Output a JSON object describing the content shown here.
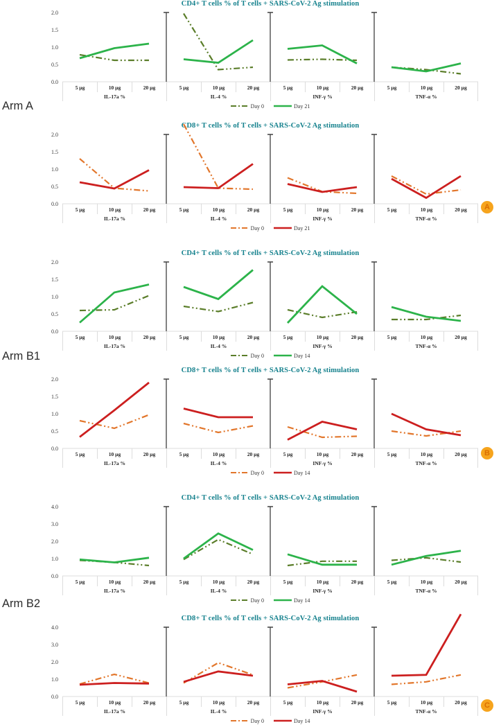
{
  "figure": {
    "arm_labels": [
      {
        "label": "Arm A"
      },
      {
        "label": "Arm B1"
      },
      {
        "label": "Arm B2"
      }
    ],
    "panel_badges": [
      {
        "label": "A"
      },
      {
        "label": "B"
      },
      {
        "label": "C"
      }
    ],
    "colors": {
      "title_teal": "#15818D",
      "day0_olive": "#5A7D29",
      "day_green": "#2CB34A",
      "day0_orange": "#E2762B",
      "day_red": "#CC1F1F",
      "axis_gray": "#DCDCDC",
      "divider_black": "#3F3F3F",
      "badge_bg": "#F6A41D",
      "badge_text": "#DB6E00"
    }
  },
  "chart_data": [
    {
      "type": "line",
      "title": "CD4+ T cells % of T cells + SARS-CoV-2 Ag stimulation",
      "ylim": [
        0,
        2.0
      ],
      "yticks": [
        "2.0",
        "1.5",
        "1.0",
        "0.5",
        "0.0"
      ],
      "x_categories": [
        "5 µg",
        "10 µg",
        "20 µg"
      ],
      "legend": [
        {
          "name": "Day 0",
          "style": "dash-dot",
          "color": "#5A7D29"
        },
        {
          "name": "Day 21",
          "style": "solid",
          "color": "#2CB34A"
        }
      ],
      "panels": [
        {
          "label": "IL-17a %",
          "series": [
            {
              "name": "Day 0",
              "values": [
                0.78,
                0.62,
                0.62
              ]
            },
            {
              "name": "Day 21",
              "values": [
                0.68,
                0.97,
                1.1
              ]
            }
          ]
        },
        {
          "label": "IL-4 %",
          "series": [
            {
              "name": "Day 0",
              "values": [
                1.97,
                0.35,
                0.42
              ]
            },
            {
              "name": "Day 21",
              "values": [
                0.65,
                0.55,
                1.2
              ]
            }
          ]
        },
        {
          "label": "INF-γ %",
          "series": [
            {
              "name": "Day 0",
              "values": [
                0.63,
                0.65,
                0.62
              ]
            },
            {
              "name": "Day 21",
              "values": [
                0.95,
                1.05,
                0.53
              ]
            }
          ]
        },
        {
          "label": "TNF-α %",
          "series": [
            {
              "name": "Day 0",
              "values": [
                0.42,
                0.35,
                0.23
              ]
            },
            {
              "name": "Day 21",
              "values": [
                0.42,
                0.3,
                0.53
              ]
            }
          ]
        }
      ]
    },
    {
      "type": "line",
      "title": "CD8+ T cells % of T cells + SARS-CoV-2 Ag stimulation",
      "ylim": [
        0,
        2.0
      ],
      "yticks": [
        "2.0",
        "1.5",
        "1.0",
        "0.5",
        "0.0"
      ],
      "x_categories": [
        "5 µg",
        "10 µg",
        "20 µg"
      ],
      "legend": [
        {
          "name": "Day 0",
          "style": "dash-dot",
          "color": "#E2762B"
        },
        {
          "name": "Day 21",
          "style": "solid",
          "color": "#CC1F1F"
        }
      ],
      "panels": [
        {
          "label": "IL-17a %",
          "series": [
            {
              "name": "Day 0",
              "values": [
                1.3,
                0.45,
                0.37
              ]
            },
            {
              "name": "Day 21",
              "values": [
                0.62,
                0.44,
                0.97
              ]
            }
          ]
        },
        {
          "label": "IL-4 %",
          "series": [
            {
              "name": "Day 0",
              "values": [
                2.3,
                0.45,
                0.42
              ]
            },
            {
              "name": "Day 21",
              "values": [
                0.48,
                0.45,
                1.15
              ]
            }
          ]
        },
        {
          "label": "INF-γ %",
          "series": [
            {
              "name": "Day 0",
              "values": [
                0.75,
                0.35,
                0.3
              ]
            },
            {
              "name": "Day 21",
              "values": [
                0.57,
                0.34,
                0.48
              ]
            }
          ]
        },
        {
          "label": "TNF-α %",
          "series": [
            {
              "name": "Day 0",
              "values": [
                0.8,
                0.28,
                0.4
              ]
            },
            {
              "name": "Day 21",
              "values": [
                0.72,
                0.17,
                0.8
              ]
            }
          ]
        }
      ]
    },
    {
      "type": "line",
      "title": "CD4+ T cells % of T cells + SARS-CoV-2 Ag stimulation",
      "ylim": [
        0,
        2.0
      ],
      "yticks": [
        "2.0",
        "1.5",
        "1.0",
        "0.5",
        "0.0"
      ],
      "x_categories": [
        "5 µg",
        "10 µg",
        "20 µg"
      ],
      "legend": [
        {
          "name": "Day 0",
          "style": "dash-dot",
          "color": "#5A7D29"
        },
        {
          "name": "Day 14",
          "style": "solid",
          "color": "#2CB34A"
        }
      ],
      "panels": [
        {
          "label": "IL-17a %",
          "series": [
            {
              "name": "Day 0",
              "values": [
                0.6,
                0.62,
                1.03
              ]
            },
            {
              "name": "Day 14",
              "values": [
                0.25,
                1.12,
                1.35
              ]
            }
          ]
        },
        {
          "label": "IL-4 %",
          "series": [
            {
              "name": "Day 0",
              "values": [
                0.72,
                0.57,
                0.83
              ]
            },
            {
              "name": "Day 14",
              "values": [
                1.28,
                0.93,
                1.77
              ]
            }
          ]
        },
        {
          "label": "INF-γ %",
          "series": [
            {
              "name": "Day 0",
              "values": [
                0.62,
                0.4,
                0.56
              ]
            },
            {
              "name": "Day 14",
              "values": [
                0.24,
                1.3,
                0.5
              ]
            }
          ]
        },
        {
          "label": "TNF-α %",
          "series": [
            {
              "name": "Day 0",
              "values": [
                0.34,
                0.34,
                0.46
              ]
            },
            {
              "name": "Day 14",
              "values": [
                0.7,
                0.42,
                0.3
              ]
            }
          ]
        }
      ]
    },
    {
      "type": "line",
      "title": "CD8+ T cells % of T cells + SARS-CoV-2 Ag stimulation",
      "ylim": [
        0,
        2.0
      ],
      "yticks": [
        "2.0",
        "1.5",
        "1.0",
        "0.5",
        "0.0"
      ],
      "x_categories": [
        "5 µg",
        "10 µg",
        "20 µg"
      ],
      "legend": [
        {
          "name": "Day 0",
          "style": "dash-dot",
          "color": "#E2762B"
        },
        {
          "name": "Day 14",
          "style": "solid",
          "color": "#CC1F1F"
        }
      ],
      "panels": [
        {
          "label": "IL-17a %",
          "series": [
            {
              "name": "Day 0",
              "values": [
                0.8,
                0.58,
                0.97
              ]
            },
            {
              "name": "Day 14",
              "values": [
                0.33,
                1.1,
                1.9
              ]
            }
          ]
        },
        {
          "label": "IL-4 %",
          "series": [
            {
              "name": "Day 0",
              "values": [
                0.72,
                0.46,
                0.65
              ]
            },
            {
              "name": "Day 14",
              "values": [
                1.15,
                0.9,
                0.9
              ]
            }
          ]
        },
        {
          "label": "INF-γ %",
          "series": [
            {
              "name": "Day 0",
              "values": [
                0.62,
                0.32,
                0.35
              ]
            },
            {
              "name": "Day 14",
              "values": [
                0.25,
                0.77,
                0.55
              ]
            }
          ]
        },
        {
          "label": "TNF-α %",
          "series": [
            {
              "name": "Day 0",
              "values": [
                0.5,
                0.36,
                0.5
              ]
            },
            {
              "name": "Day 14",
              "values": [
                1.0,
                0.55,
                0.38
              ]
            }
          ]
        }
      ]
    },
    {
      "type": "line",
      "title": "CD4+ T cells % of T cells + SARS-CoV-2 Ag stimulation",
      "ylim": [
        0,
        4.0
      ],
      "yticks": [
        "4.0",
        "3.0",
        "2.0",
        "1.0",
        "0.0"
      ],
      "x_categories": [
        "5 µg",
        "10 µg",
        "20 µg"
      ],
      "legend": [
        {
          "name": "Day 0",
          "style": "dash-dot",
          "color": "#5A7D29"
        },
        {
          "name": "Day 14",
          "style": "solid",
          "color": "#2CB34A"
        }
      ],
      "panels": [
        {
          "label": "IL-17a %",
          "series": [
            {
              "name": "Day 0",
              "values": [
                0.9,
                0.78,
                0.6
              ]
            },
            {
              "name": "Day 14",
              "values": [
                0.95,
                0.78,
                1.05
              ]
            }
          ]
        },
        {
          "label": "IL-4 %",
          "series": [
            {
              "name": "Day 0",
              "values": [
                0.95,
                2.1,
                1.25
              ]
            },
            {
              "name": "Day 14",
              "values": [
                1.0,
                2.45,
                1.5
              ]
            }
          ]
        },
        {
          "label": "INF-γ %",
          "series": [
            {
              "name": "Day 0",
              "values": [
                0.6,
                0.85,
                0.85
              ]
            },
            {
              "name": "Day 14",
              "values": [
                1.25,
                0.65,
                0.65
              ]
            }
          ]
        },
        {
          "label": "TNF-α %",
          "series": [
            {
              "name": "Day 0",
              "values": [
                0.9,
                1.05,
                0.8
              ]
            },
            {
              "name": "Day 14",
              "values": [
                0.65,
                1.15,
                1.45
              ]
            }
          ]
        }
      ]
    },
    {
      "type": "line",
      "title": "CD8+ T cells % of T cells + SARS-CoV-2 Ag stimulation",
      "ylim": [
        0,
        4.0
      ],
      "yticks": [
        "4.0",
        "3.0",
        "2.0",
        "1.0",
        "0.0"
      ],
      "x_categories": [
        "5 µg",
        "10 µg",
        "20 µg"
      ],
      "legend": [
        {
          "name": "Day 0",
          "style": "dash-dot",
          "color": "#E2762B"
        },
        {
          "name": "Day 14",
          "style": "solid",
          "color": "#CC1F1F"
        }
      ],
      "panels": [
        {
          "label": "IL-17a %",
          "series": [
            {
              "name": "Day 0",
              "values": [
                0.72,
                1.28,
                0.78
              ]
            },
            {
              "name": "Day 14",
              "values": [
                0.68,
                0.78,
                0.75
              ]
            }
          ]
        },
        {
          "label": "IL-4 %",
          "series": [
            {
              "name": "Day 0",
              "values": [
                0.78,
                1.95,
                1.25
              ]
            },
            {
              "name": "Day 14",
              "values": [
                0.85,
                1.45,
                1.2
              ]
            }
          ]
        },
        {
          "label": "INF-γ %",
          "series": [
            {
              "name": "Day 0",
              "values": [
                0.5,
                0.85,
                1.25
              ]
            },
            {
              "name": "Day 14",
              "values": [
                0.7,
                0.9,
                0.28
              ]
            }
          ]
        },
        {
          "label": "TNF-α %",
          "series": [
            {
              "name": "Day 0",
              "values": [
                0.7,
                0.85,
                1.25
              ]
            },
            {
              "name": "Day 14",
              "values": [
                1.2,
                1.25,
                4.75
              ]
            }
          ]
        }
      ]
    }
  ]
}
